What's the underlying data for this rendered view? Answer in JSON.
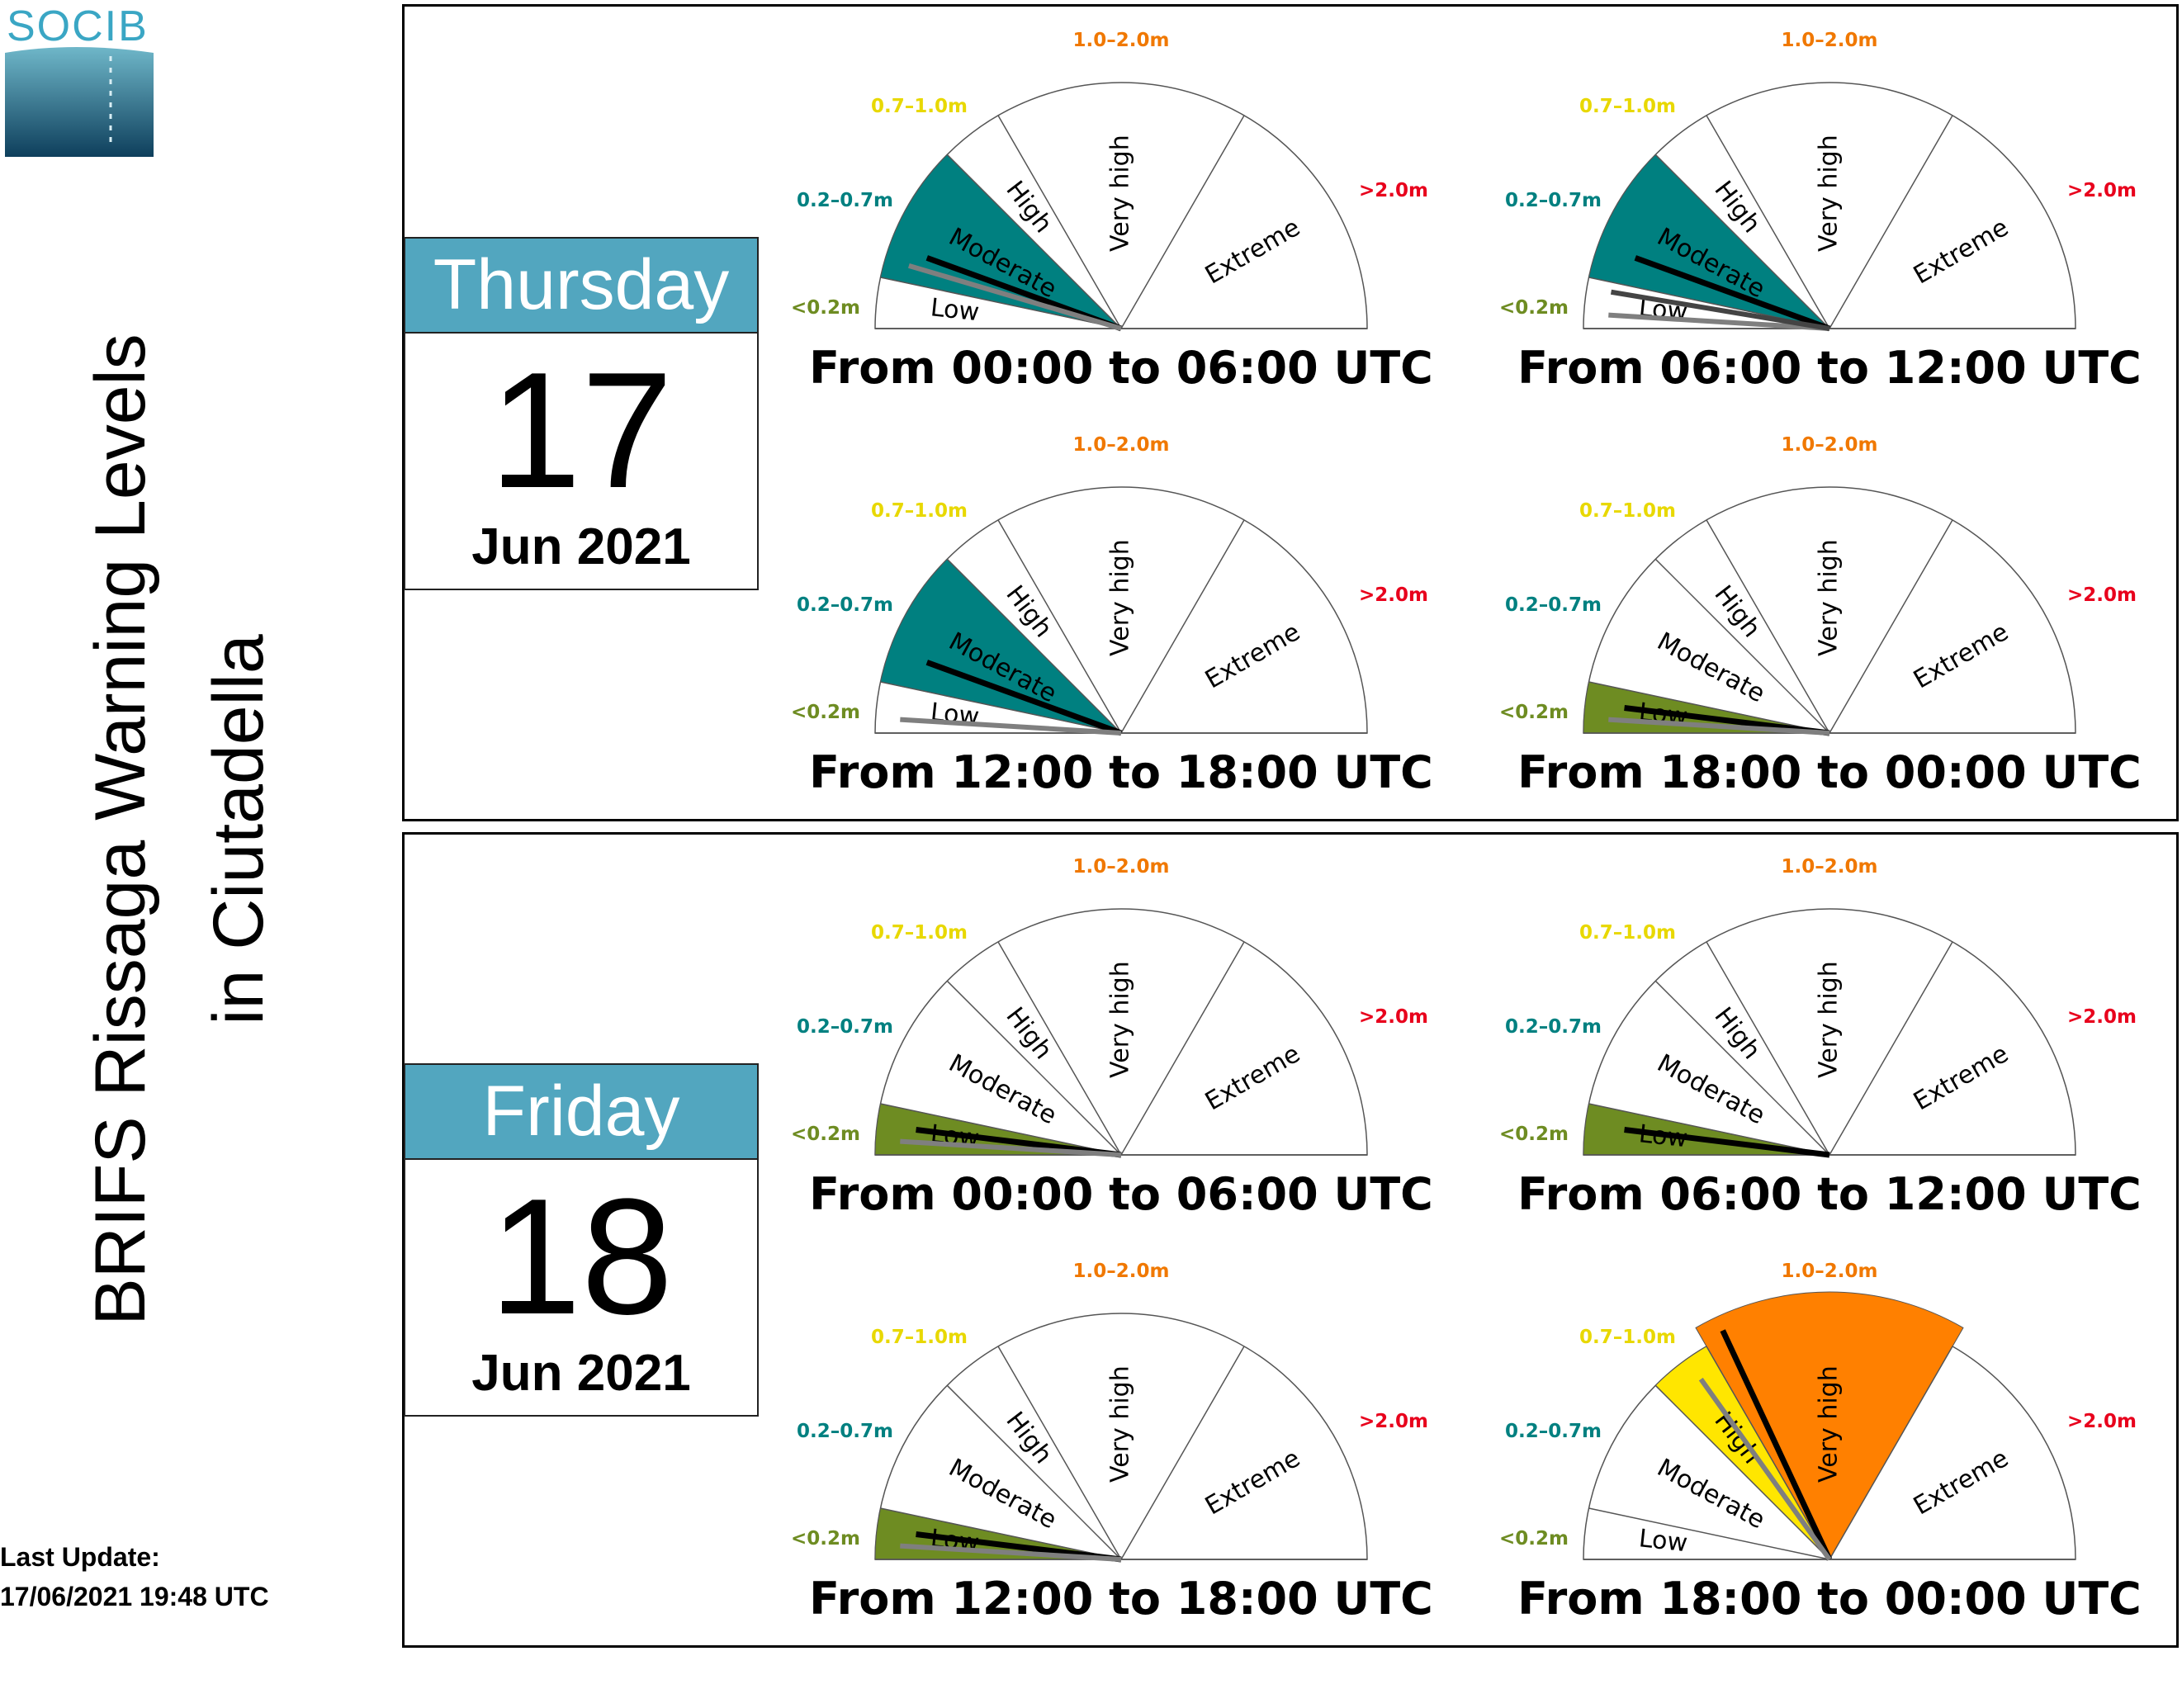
{
  "logo": {
    "text": "SOCIB"
  },
  "title": {
    "line1": "BRIFS Rissaga Warning Levels",
    "line2": "in Ciutadella"
  },
  "last_update": {
    "label": "Last Update:",
    "value": "17/06/2021 19:48 UTC"
  },
  "colors": {
    "low": "#6e8c22",
    "moderate": "#008080",
    "high": "#ffe600",
    "very_high": "#ff8000",
    "extreme": "#e8001c",
    "day_header": "#52a6bf"
  },
  "gauge_labels": {
    "levels": [
      "Low",
      "Moderate",
      "High",
      "Very high",
      "Extreme"
    ],
    "ranges": [
      "<0.2m",
      "0.2–0.7m",
      "0.7–1.0m",
      "1.0–2.0m",
      ">2.0m"
    ]
  },
  "days": [
    {
      "weekday": "Thursday",
      "day": "17",
      "month_year": "Jun 2021"
    },
    {
      "weekday": "Friday",
      "day": "18",
      "month_year": "Jun 2021"
    }
  ],
  "chart_data": [
    {
      "type": "gauge",
      "day": "Thursday 17",
      "title": "From 00:00 to 06:00 UTC",
      "highlighted_level": "Moderate",
      "needle_levels": [
        "Moderate",
        "Moderate"
      ]
    },
    {
      "type": "gauge",
      "day": "Thursday 17",
      "title": "From 06:00 to 12:00 UTC",
      "highlighted_level": "Moderate",
      "needle_levels": [
        "Moderate",
        "Low",
        "Low"
      ]
    },
    {
      "type": "gauge",
      "day": "Thursday 17",
      "title": "From 12:00 to 18:00 UTC",
      "highlighted_level": "Moderate",
      "needle_levels": [
        "Moderate",
        "Low"
      ]
    },
    {
      "type": "gauge",
      "day": "Thursday 17",
      "title": "From 18:00 to 00:00 UTC",
      "highlighted_level": "Low",
      "needle_levels": [
        "Low",
        "Low"
      ]
    },
    {
      "type": "gauge",
      "day": "Friday 18",
      "title": "From 00:00 to 06:00 UTC",
      "highlighted_level": "Low",
      "needle_levels": [
        "Low",
        "Low"
      ]
    },
    {
      "type": "gauge",
      "day": "Friday 18",
      "title": "From 06:00 to 12:00 UTC",
      "highlighted_level": "Low",
      "needle_levels": [
        "Low"
      ]
    },
    {
      "type": "gauge",
      "day": "Friday 18",
      "title": "From 12:00 to 18:00 UTC",
      "highlighted_level": "Low",
      "needle_levels": [
        "Low",
        "Low"
      ]
    },
    {
      "type": "gauge",
      "day": "Friday 18",
      "title": "From 18:00 to 00:00 UTC",
      "highlighted_level": "Very high",
      "needle_levels": [
        "Very high",
        "High"
      ]
    }
  ]
}
